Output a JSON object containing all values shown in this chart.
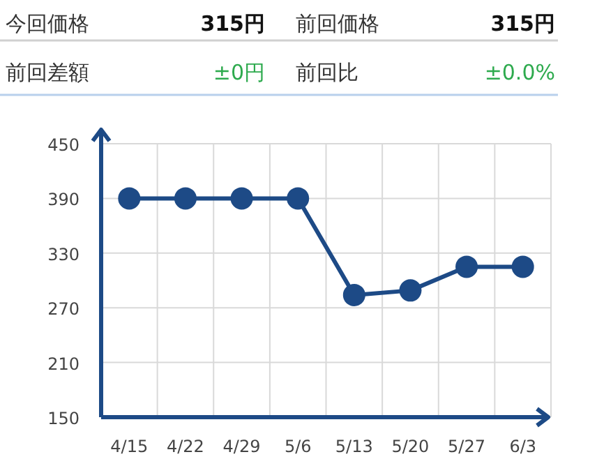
{
  "chart_data": [
    {
      "type": "other",
      "annotations": [
        "今回価格",
        "315円",
        "前回価格",
        "315円",
        "前回差額",
        "±0円",
        "前回比",
        "±0.0%"
      ],
      "colors": [
        "#333333",
        "#111111",
        "#333333",
        "#111111",
        "#333333",
        "#2eaa4e",
        "#333333",
        "#2eaa4e"
      ]
    },
    {
      "type": "line",
      "categories": [
        "4/15",
        "4/22",
        "4/29",
        "5/6",
        "5/13",
        "5/20",
        "5/27",
        "6/3"
      ],
      "series": [
        {
          "color": "#1d4a86",
          "values": [
            390,
            390,
            390,
            390,
            284,
            289,
            315,
            315
          ]
        }
      ],
      "ylim": [
        150,
        450
      ],
      "yticks": [
        150,
        210,
        270,
        330,
        390,
        450
      ],
      "grid": true,
      "marker": "circle",
      "line_style": "solid"
    }
  ]
}
